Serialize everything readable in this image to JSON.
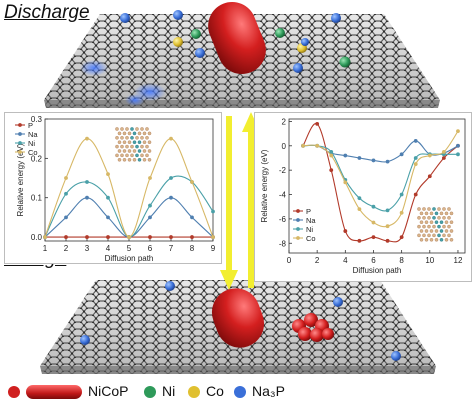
{
  "titles": {
    "discharge": "Discharge",
    "charge": "Charge"
  },
  "colors": {
    "P": "#b23a2a",
    "Na": "#4f7fb0",
    "Ni": "#4aa0a8",
    "Co": "#d7b866",
    "NiCoP": "#d02020",
    "ni_atom": "#2e9a5a",
    "co_atom": "#e0c030",
    "na3p_atom": "#3a6fd8",
    "arrow": "#f2ee30"
  },
  "bottom_legend": {
    "nicop": "NiCoP",
    "ni": "Ni",
    "co": "Co",
    "na3p": "Na₃P"
  },
  "chart_data": [
    {
      "type": "line",
      "xlabel": "Diffusion path",
      "ylabel": "Relative energy (eV)",
      "x": [
        1,
        2,
        3,
        4,
        5,
        6,
        7,
        8,
        9
      ],
      "xticks": [
        "1",
        "2",
        "3",
        "4",
        "5",
        "6",
        "7",
        "8",
        "9"
      ],
      "yticks": [
        "0.0",
        "0.1",
        "0.2",
        "0.3"
      ],
      "xlim": [
        1,
        9
      ],
      "ylim": [
        -0.01,
        0.3
      ],
      "legend_position": "top-left",
      "series": [
        {
          "name": "P",
          "values": [
            0.0,
            0.0,
            0.0,
            0.0,
            0.0,
            0.0,
            0.0,
            0.0,
            0.0
          ]
        },
        {
          "name": "Na",
          "values": [
            0.0,
            0.05,
            0.1,
            0.05,
            0.0,
            0.05,
            0.1,
            0.05,
            0.0
          ]
        },
        {
          "name": "Ni",
          "values": [
            0.0,
            0.11,
            0.14,
            0.1,
            0.0,
            0.08,
            0.15,
            0.14,
            0.065
          ]
        },
        {
          "name": "Co",
          "values": [
            0.0,
            0.15,
            0.25,
            0.16,
            0.0,
            0.15,
            0.25,
            0.14,
            0.0
          ]
        }
      ]
    },
    {
      "type": "line",
      "xlabel": "Diffusion path",
      "ylabel": "Relative energy (eV)",
      "x": [
        1,
        2,
        3,
        4,
        5,
        6,
        7,
        8,
        9,
        10,
        11,
        12
      ],
      "xticks": [
        "0",
        "2",
        "4",
        "6",
        "8",
        "10",
        "12"
      ],
      "yticks": [
        "2",
        "0",
        "-2",
        "-4",
        "-6",
        "-8"
      ],
      "xlim": [
        0,
        12.5
      ],
      "ylim": [
        -8.8,
        2.2
      ],
      "legend_position": "bottom-left",
      "series": [
        {
          "name": "P",
          "values": [
            0.0,
            1.8,
            -2.0,
            -7.0,
            -7.8,
            -7.5,
            -7.8,
            -7.5,
            -4.0,
            -2.5,
            -1.0,
            0.0
          ]
        },
        {
          "name": "Na",
          "values": [
            0.0,
            0.0,
            -0.6,
            -0.8,
            -1.0,
            -1.2,
            -1.3,
            -0.7,
            0.4,
            -0.7,
            -0.6,
            0.0
          ]
        },
        {
          "name": "Ni",
          "values": [
            0.0,
            0.0,
            -0.5,
            -2.8,
            -4.3,
            -5.0,
            -5.3,
            -4.0,
            -1.0,
            -0.7,
            -0.7,
            -0.7
          ]
        },
        {
          "name": "Co",
          "values": [
            0.0,
            0.0,
            -0.8,
            -3.0,
            -5.2,
            -6.3,
            -6.6,
            -5.5,
            -1.5,
            -0.8,
            -0.5,
            1.2
          ]
        }
      ]
    }
  ]
}
